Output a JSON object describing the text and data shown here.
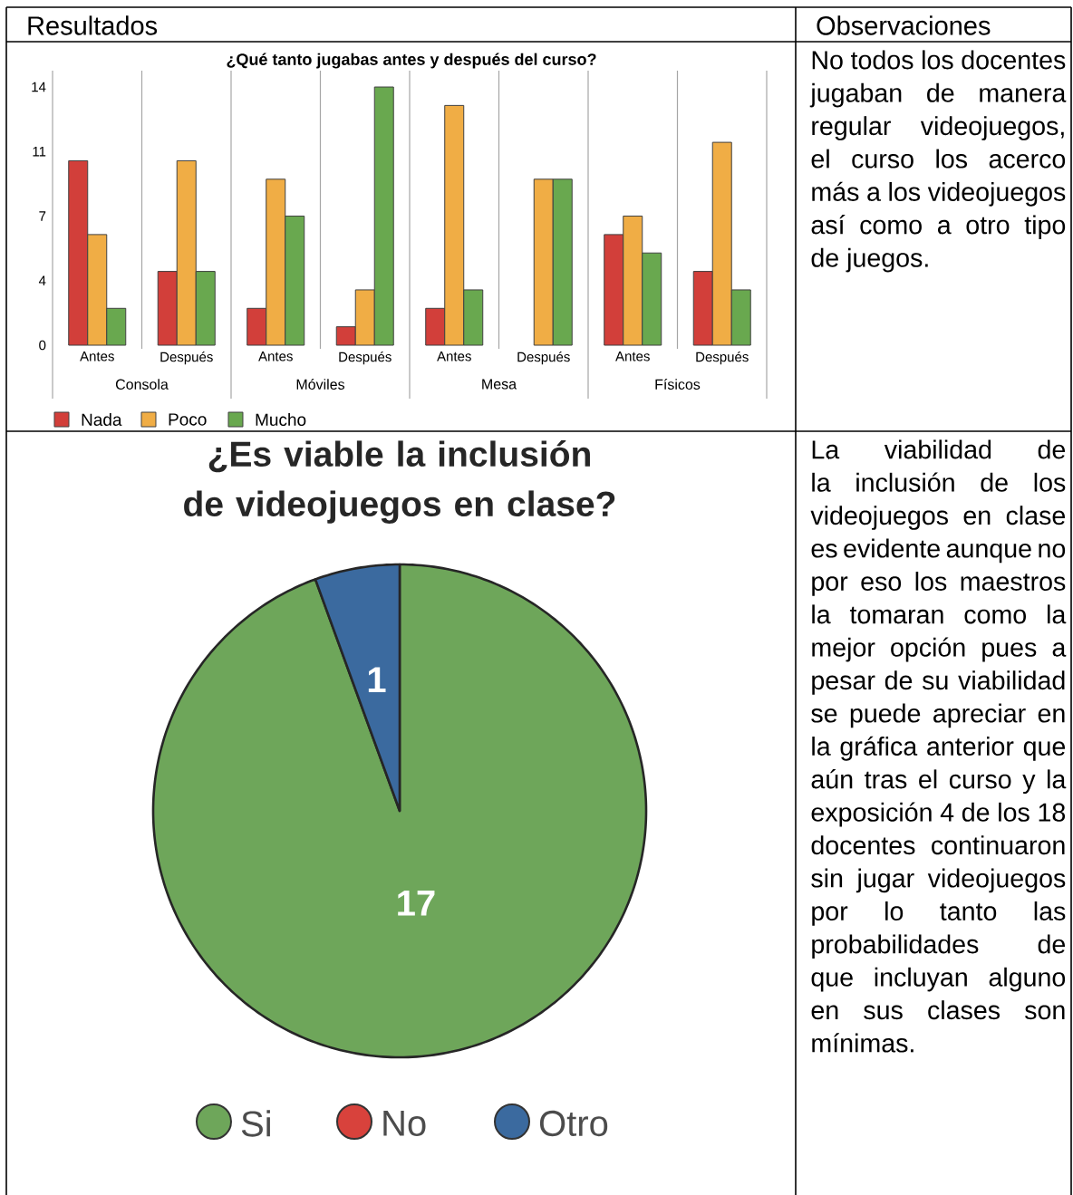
{
  "chart_data": [
    {
      "type": "other",
      "annotations": [
        "Resultados",
        "Observaciones"
      ]
    },
    {
      "type": "bar",
      "title": "¿Qué tanto jugabas antes y después del curso?",
      "categories": [
        "Antes",
        "Después",
        "Antes",
        "Después",
        "Antes",
        "Después",
        "Antes",
        "Después"
      ],
      "series": [
        {
          "name": "Nada",
          "color": "#d23f3a",
          "values": [
            10,
            4,
            2,
            1,
            2,
            0,
            6,
            4
          ]
        },
        {
          "name": "Poco",
          "color": "#f0ad45",
          "values": [
            6,
            10,
            9,
            3,
            13,
            9,
            7,
            11
          ]
        },
        {
          "name": "Mucho",
          "color": "#69a84f",
          "values": [
            2,
            4,
            7,
            14,
            3,
            9,
            5,
            3
          ]
        }
      ],
      "ylim": [
        0,
        14
      ],
      "yticks": [
        0,
        {
          "value": 3.5,
          "label": "4"
        },
        7,
        {
          "value": 10.5,
          "label": "11"
        },
        14
      ],
      "annotations": [
        "Consola",
        "Móviles",
        "Mesa",
        "Físicos"
      ],
      "legend": "bottom"
    },
    {
      "type": "other",
      "annotations": [
        "No todos los docentes jugaban de manera regular videojuegos, el curso los acerco más a los videojuegos así como a otro tipo de juegos."
      ]
    },
    {
      "type": "pie",
      "title": "¿Es viable la inclusión de videojuegos en clase?",
      "categories": [
        "Si",
        "No",
        "Otro"
      ],
      "values": [
        17,
        0,
        1
      ],
      "colors": [
        "#6ea65a",
        "#d8423c",
        "#3b6a9f"
      ],
      "data_labels": true,
      "legend": "bottom"
    },
    {
      "type": "other",
      "annotations": [
        "La viabilidad de la inclusión de los videojuegos en clase es evidente aunque no por eso los maestros la tomaran como la mejor opción pues a pesar de su viabilidad se puede apreciar en la gráfica anterior que aún tras el curso y la exposición 4 de los 18 docentes continuaron sin jugar videojuegos por lo tanto las probabilidades de que incluyan alguno en sus clases son mínimas."
      ]
    }
  ]
}
